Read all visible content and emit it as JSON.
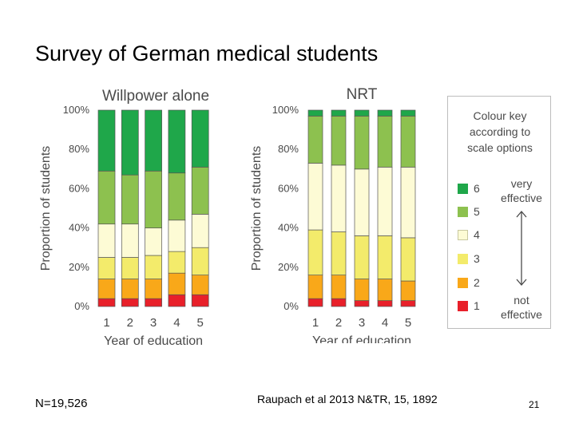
{
  "slide": {
    "title": "Survey of German medical students",
    "footer_left": "N=19,526",
    "footer_center": "Raupach et al 2013 N&TR, 15, 1892",
    "page_number": "21"
  },
  "chart_data": [
    {
      "type": "bar",
      "stacked": true,
      "title": "Willpower alone",
      "xlabel": "Year of education",
      "ylabel": "Proportion of students",
      "categories": [
        "1",
        "2",
        "3",
        "4",
        "5"
      ],
      "y_ticks": [
        "0%",
        "20%",
        "40%",
        "60%",
        "80%",
        "100%"
      ],
      "ylim": [
        0,
        100
      ],
      "series": [
        {
          "name": "1",
          "color": "#e8202a",
          "values": [
            4,
            4,
            4,
            6,
            6
          ]
        },
        {
          "name": "2",
          "color": "#f9a819",
          "values": [
            10,
            10,
            10,
            11,
            10
          ]
        },
        {
          "name": "3",
          "color": "#f3eb6b",
          "values": [
            11,
            11,
            12,
            11,
            14
          ]
        },
        {
          "name": "4",
          "color": "#fdfbd5",
          "values": [
            17,
            17,
            14,
            16,
            17
          ]
        },
        {
          "name": "5",
          "color": "#8dc14f",
          "values": [
            27,
            25,
            29,
            24,
            24
          ]
        },
        {
          "name": "6",
          "color": "#1fa74a",
          "values": [
            31,
            33,
            31,
            32,
            29
          ]
        }
      ]
    },
    {
      "type": "bar",
      "stacked": true,
      "title": "NRT",
      "xlabel": "Year of education",
      "ylabel": "Proportion of students",
      "categories": [
        "1",
        "2",
        "3",
        "4",
        "5"
      ],
      "y_ticks": [
        "0%",
        "20%",
        "40%",
        "60%",
        "80%",
        "100%"
      ],
      "ylim": [
        0,
        100
      ],
      "series": [
        {
          "name": "1",
          "color": "#e8202a",
          "values": [
            4,
            4,
            3,
            3,
            3
          ]
        },
        {
          "name": "2",
          "color": "#f9a819",
          "values": [
            12,
            12,
            11,
            11,
            10
          ]
        },
        {
          "name": "3",
          "color": "#f3eb6b",
          "values": [
            23,
            22,
            22,
            22,
            22
          ]
        },
        {
          "name": "4",
          "color": "#fdfbd5",
          "values": [
            34,
            34,
            34,
            35,
            36
          ]
        },
        {
          "name": "5",
          "color": "#8dc14f",
          "values": [
            24,
            25,
            27,
            26,
            26
          ]
        },
        {
          "name": "6",
          "color": "#1fa74a",
          "values": [
            3,
            3,
            3,
            3,
            3
          ]
        }
      ]
    }
  ],
  "legend": {
    "title_lines": [
      "Colour key",
      "according to",
      "scale options"
    ],
    "top_label": [
      "very",
      "effective"
    ],
    "bottom_label": [
      "not",
      "effective"
    ],
    "items": [
      {
        "label": "6",
        "color": "#1fa74a"
      },
      {
        "label": "5",
        "color": "#8dc14f"
      },
      {
        "label": "4",
        "color": "#fdfbd5"
      },
      {
        "label": "3",
        "color": "#f3eb6b"
      },
      {
        "label": "2",
        "color": "#f9a819"
      },
      {
        "label": "1",
        "color": "#e8202a"
      }
    ]
  }
}
